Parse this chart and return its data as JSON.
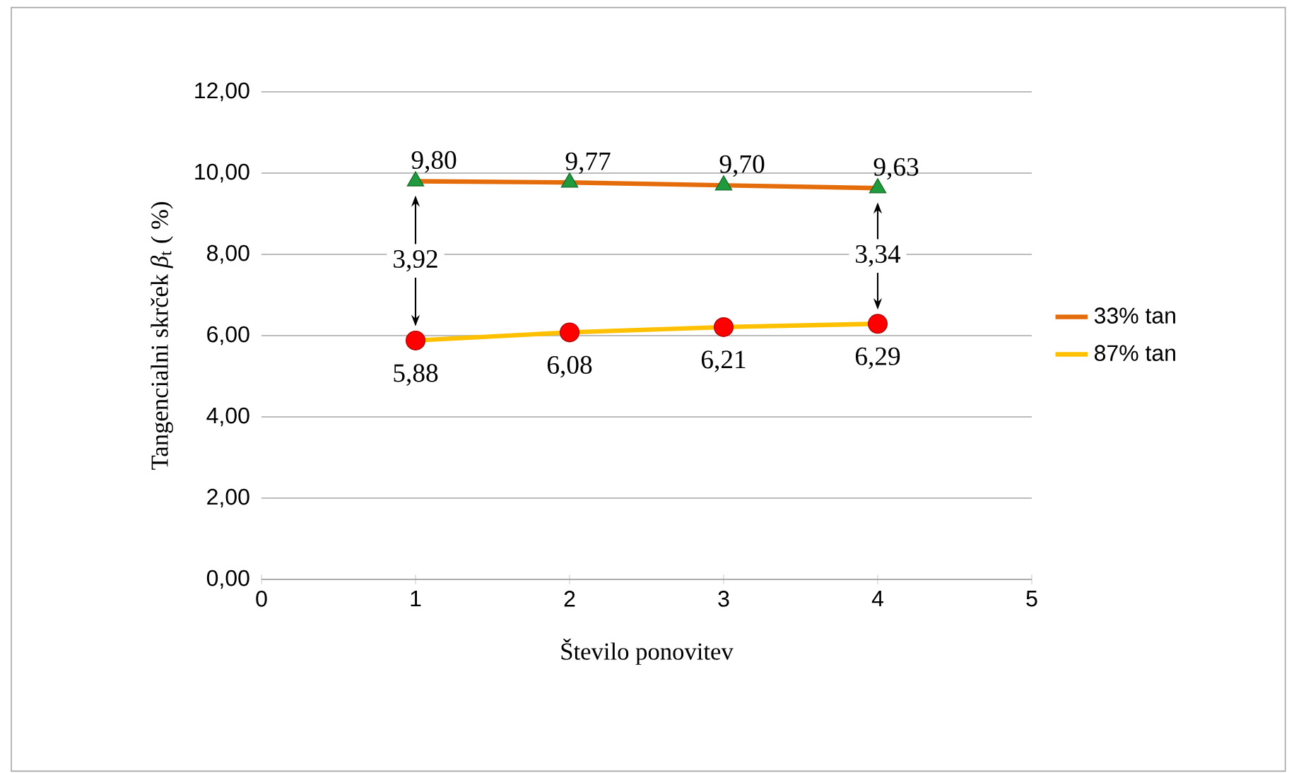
{
  "chart_data": {
    "type": "line",
    "xlabel": "Število ponovitev",
    "ylabel": "Tangencialni skrček *β*$_{t}$ ( %)",
    "xlim": [
      0,
      5
    ],
    "xticks": [
      0,
      1,
      2,
      3,
      4,
      5
    ],
    "ylim": [
      0,
      12
    ],
    "yticks": [
      {
        "value": 0,
        "label": "0,00"
      },
      {
        "value": 2,
        "label": "2,00"
      },
      {
        "value": 4,
        "label": "4,00"
      },
      {
        "value": 6,
        "label": "6,00"
      },
      {
        "value": 8,
        "label": "8,00"
      },
      {
        "value": 10,
        "label": "10,00"
      },
      {
        "value": 12,
        "label": "12,00"
      }
    ],
    "grid": "y",
    "legend": "right",
    "series": [
      {
        "name": "33% tan",
        "color": "#e46c0a",
        "colors": [
          "#1f9a3c",
          "#1f9a3c",
          "#1f9a3c",
          "#1f9a3c"
        ],
        "marker": "triangle",
        "x": [
          1,
          2,
          3,
          4
        ],
        "values": [
          9.8,
          9.77,
          9.7,
          9.63
        ],
        "value_labels": [
          "9,80",
          "9,77",
          "9,70",
          "9,63"
        ]
      },
      {
        "name": "87% tan",
        "color": "#ffc000",
        "colors": [
          "#ff0000",
          "#ff0000",
          "#ff0000",
          "#ff0000"
        ],
        "marker": "circle",
        "x": [
          1,
          2,
          3,
          4
        ],
        "values": [
          5.88,
          6.08,
          6.21,
          6.29
        ],
        "value_labels": [
          "5,88",
          "6,08",
          "6,21",
          "6,29"
        ]
      }
    ],
    "annotations": [
      {
        "text": "3,92",
        "x": 1,
        "y": 7.84
      },
      {
        "text": "3,34",
        "x": 4,
        "y": 7.96
      }
    ]
  }
}
